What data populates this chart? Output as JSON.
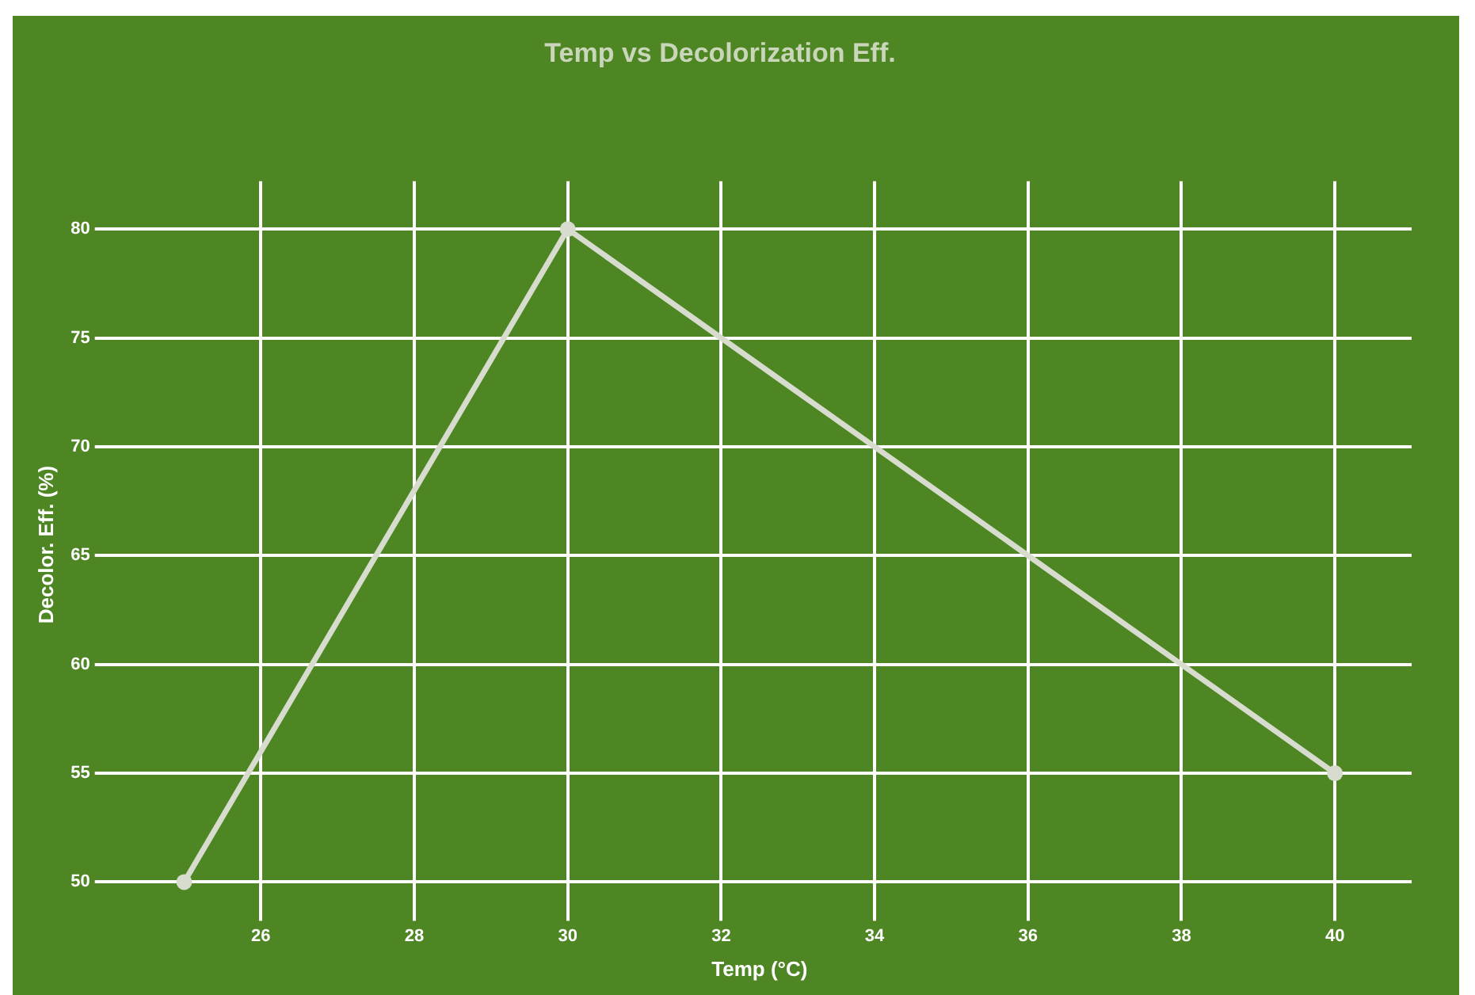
{
  "chart_data": {
    "type": "line",
    "title": "Temp vs Decolorization Eff.",
    "xlabel": "Temp (°C)",
    "ylabel": "Decolor. Eff. (%)",
    "x": [
      25,
      30,
      40
    ],
    "series": [
      {
        "color": "#d8dccf",
        "values": [
          50,
          80,
          55
        ]
      }
    ],
    "xlim": [
      24,
      41
    ],
    "xticks": [
      26,
      28,
      30,
      32,
      34,
      36,
      38,
      40
    ],
    "ylim": [
      48.8,
      82.2
    ],
    "yticks": [
      50,
      55,
      60,
      65,
      70,
      75,
      80
    ],
    "grid": true,
    "legend": false,
    "marker": "circle",
    "line_style": "solid"
  }
}
